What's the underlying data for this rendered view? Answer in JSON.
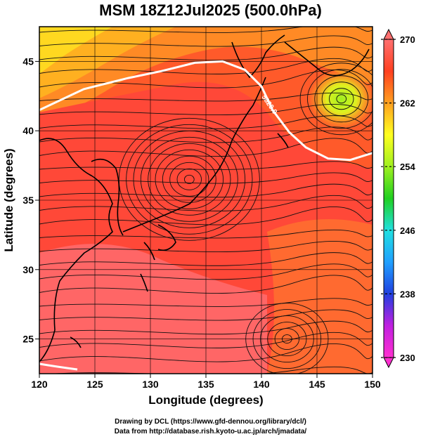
{
  "title": "MSM 18Z12Jul2025 (500.0hPa)",
  "xlabel": "Longitude (degrees)",
  "ylabel": "Latitude  (degrees)",
  "x_ticks": [
    "120",
    "125",
    "130",
    "135",
    "140",
    "145",
    "150"
  ],
  "y_ticks": [
    "25",
    "30",
    "35",
    "40",
    "45"
  ],
  "colorbar": {
    "labels": [
      "270",
      "262",
      "254",
      "246",
      "238",
      "230"
    ],
    "min": 230,
    "max": 270,
    "colors": [
      "#ff2fd0",
      "#c020e0",
      "#2040e0",
      "#20a0ff",
      "#20e0e0",
      "#20d020",
      "#a0f020",
      "#ffff20",
      "#ffa020",
      "#ff4020",
      "#ff7070"
    ]
  },
  "contour_label": "5820.0",
  "credits": {
    "line1": "Drawing by DCL (https://www.gfd-dennou.org/library/dcl/)",
    "line2": "Data from http://database.rish.kyoto-u.ac.jp/arch/jmadata/"
  },
  "chart_data": {
    "type": "heatmap",
    "title": "MSM 18Z12Jul2025 (500.0hPa)",
    "xlabel": "Longitude (degrees)",
    "ylabel": "Latitude  (degrees)",
    "xlim": [
      120,
      150
    ],
    "ylim": [
      22.5,
      47.5
    ],
    "colorbar_range": [
      230,
      270
    ],
    "grid": true,
    "vortices": [
      {
        "lon": 147.2,
        "lat": 42.3,
        "kind": "cyclonic-cool"
      },
      {
        "lon": 133.5,
        "lat": 36.5,
        "kind": "anticyclonic"
      },
      {
        "lon": 142.3,
        "lat": 25.0,
        "kind": "cyclonic"
      }
    ],
    "contour_5820": [
      [
        120,
        41.5
      ],
      [
        124,
        43.0
      ],
      [
        128,
        43.8
      ],
      [
        131,
        44.3
      ],
      [
        134,
        44.9
      ],
      [
        136.5,
        45.0
      ],
      [
        138.5,
        44.4
      ],
      [
        140,
        43.2
      ],
      [
        141,
        41.5
      ],
      [
        142.5,
        39.9
      ],
      [
        144,
        38.8
      ],
      [
        146,
        38.0
      ],
      [
        148,
        37.9
      ],
      [
        150,
        38.4
      ]
    ]
  }
}
